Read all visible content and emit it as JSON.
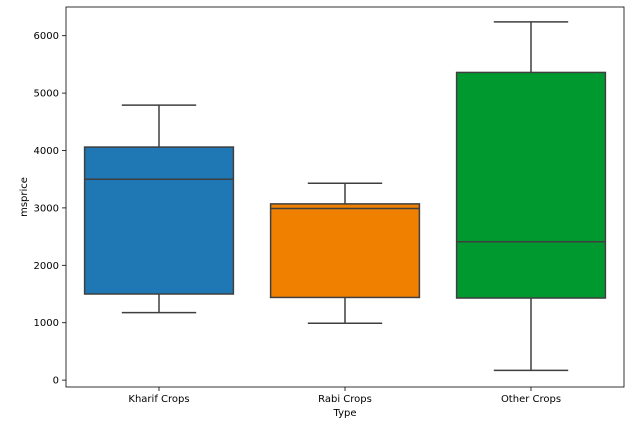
{
  "chart_data": {
    "type": "box",
    "xlabel": "Type",
    "ylabel": "msprice",
    "ylim": [
      -120,
      6500
    ],
    "yticks": [
      0,
      1000,
      2000,
      3000,
      4000,
      5000,
      6000
    ],
    "grid": false,
    "categories": [
      "Kharif Crops",
      "Rabi Crops",
      "Other Crops"
    ],
    "boxes": [
      {
        "category": "Kharif Crops",
        "whisker_low": 1175,
        "q1": 1500,
        "median": 3500,
        "q3": 4060,
        "whisker_high": 4790,
        "color": "#1f77b4"
      },
      {
        "category": "Rabi Crops",
        "whisker_low": 990,
        "q1": 1440,
        "median": 2990,
        "q3": 3070,
        "whisker_high": 3430,
        "color": "#f08000"
      },
      {
        "category": "Other Crops",
        "whisker_low": 170,
        "q1": 1430,
        "median": 2410,
        "q3": 5360,
        "whisker_high": 6240,
        "color": "#00992f"
      }
    ]
  }
}
